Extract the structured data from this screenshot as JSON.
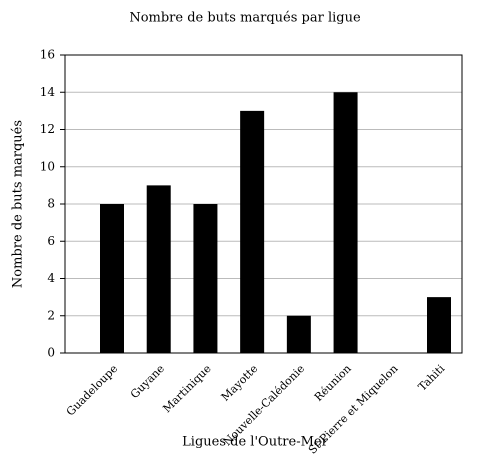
{
  "chart_data": {
    "type": "bar",
    "title": "Nombre de buts marqués par ligue",
    "x_label": "Ligues de l'Outre-Mer",
    "y_label": "Nombre de buts marqués",
    "categories": [
      "Guadeloupe",
      "Guyane",
      "Martinique",
      "Mayotte",
      "Nouvelle-Calédonie",
      "Réunion",
      "St-Pierre et Miquelon",
      "Tahiti"
    ],
    "values": [
      8,
      9,
      8,
      13,
      2,
      14,
      0,
      3
    ],
    "color": "#000000",
    "ylim": [
      0,
      16
    ],
    "yticks": [
      0,
      2,
      4,
      6,
      8,
      10,
      12,
      14,
      16
    ],
    "grid": true
  }
}
